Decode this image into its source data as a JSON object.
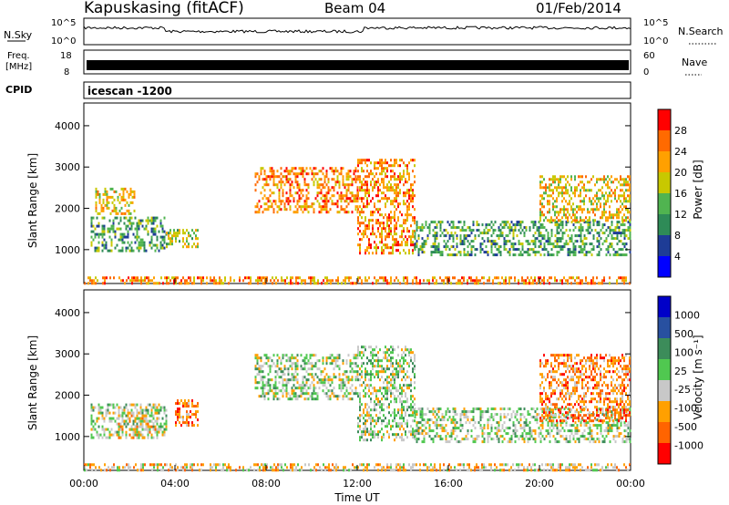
{
  "header": {
    "station": "Kapuskasing (fitACF)",
    "beam": "Beam 04",
    "date": "01/Feb/2014"
  },
  "control_panels": {
    "nsky_label": "N.Sky",
    "nsky_ticks": [
      "10^5",
      "10^0"
    ],
    "nsearch_label": "N.Search",
    "nsearch_ticks": [
      "10^5",
      "10^0"
    ],
    "freq_label_line1": "Freq.",
    "freq_label_line2": "[MHz]",
    "freq_ticks": [
      "18",
      "8"
    ],
    "nave_label": "Nave",
    "nave_ticks": [
      "60",
      "0"
    ],
    "cpid_label": "CPID",
    "cpid_value": "icescan -1200",
    "colors": {
      "nsky": "#000000",
      "nsearch": "#000000"
    }
  },
  "chart_data": [
    {
      "type": "heatmap",
      "panel": "power",
      "ylabel": "Slant Range [km]",
      "ylim": [
        180,
        4550
      ],
      "y_ticks": [
        "1000",
        "2000",
        "3000",
        "4000"
      ],
      "x_ticks": [
        "00:00",
        "04:00",
        "08:00",
        "12:00",
        "16:00",
        "20:00",
        "00:00"
      ],
      "xlim_hours": [
        0,
        24
      ],
      "colorbar": {
        "label": "Power [dB]",
        "ticks": [
          "28",
          "24",
          "20",
          "16",
          "12",
          "8",
          "4"
        ],
        "colors": [
          "#ff0000",
          "#ff6a00",
          "#ffa000",
          "#c8c800",
          "#50b450",
          "#2e8b57",
          "#1e3c96",
          "#0000ff"
        ]
      },
      "regions": [
        {
          "t": [
            0.3,
            3.6
          ],
          "r": [
            1000,
            1800
          ],
          "level": 5
        },
        {
          "t": [
            0.5,
            2.2
          ],
          "r": [
            1900,
            2500
          ],
          "level": 3
        },
        {
          "t": [
            3.6,
            5.0
          ],
          "r": [
            1100,
            1500
          ],
          "level": 4
        },
        {
          "t": [
            7.5,
            12.0
          ],
          "r": [
            1900,
            3000
          ],
          "level": 2
        },
        {
          "t": [
            12.0,
            14.5
          ],
          "r": [
            900,
            3200
          ],
          "level": 2
        },
        {
          "t": [
            14.5,
            24.0
          ],
          "r": [
            900,
            1700
          ],
          "level": 5
        },
        {
          "t": [
            20.0,
            24.0
          ],
          "r": [
            1700,
            2800
          ],
          "level": 3
        },
        {
          "t": [
            0.0,
            24.0
          ],
          "r": [
            180,
            350
          ],
          "level": 2
        }
      ]
    },
    {
      "type": "heatmap",
      "panel": "velocity",
      "ylabel": "Slant Range [km]",
      "ylim": [
        180,
        4550
      ],
      "y_ticks": [
        "1000",
        "2000",
        "3000",
        "4000"
      ],
      "x_ticks": [
        "00:00",
        "04:00",
        "08:00",
        "12:00",
        "16:00",
        "20:00",
        "00:00"
      ],
      "xlim_hours": [
        0,
        24
      ],
      "xlabel": "Time UT",
      "colorbar": {
        "label": "Velocity [m s⁻¹]",
        "ticks": [
          "1000",
          "500",
          "100",
          "25",
          "-25",
          "-100",
          "-500",
          "-1000"
        ],
        "colors": [
          "#0000c8",
          "#2850a0",
          "#3c8c5a",
          "#50c850",
          "#c8c8c8",
          "#ffa000",
          "#ff6400",
          "#ff0000"
        ]
      },
      "regions": [
        {
          "t": [
            0.3,
            3.6
          ],
          "r": [
            1000,
            1800
          ],
          "level": 4
        },
        {
          "t": [
            1.5,
            3.2
          ],
          "r": [
            1000,
            1600
          ],
          "level": 5
        },
        {
          "t": [
            4.0,
            5.0
          ],
          "r": [
            1300,
            1900
          ],
          "level": 6
        },
        {
          "t": [
            7.5,
            12.0
          ],
          "r": [
            1900,
            3000
          ],
          "level": 4
        },
        {
          "t": [
            12.0,
            14.5
          ],
          "r": [
            900,
            3200
          ],
          "level": 4
        },
        {
          "t": [
            14.5,
            24.0
          ],
          "r": [
            900,
            1700
          ],
          "level": 4
        },
        {
          "t": [
            20.0,
            24.0
          ],
          "r": [
            1400,
            3000
          ],
          "level": 6
        },
        {
          "t": [
            0.0,
            24.0
          ],
          "r": [
            180,
            350
          ],
          "level": 5
        }
      ]
    }
  ]
}
